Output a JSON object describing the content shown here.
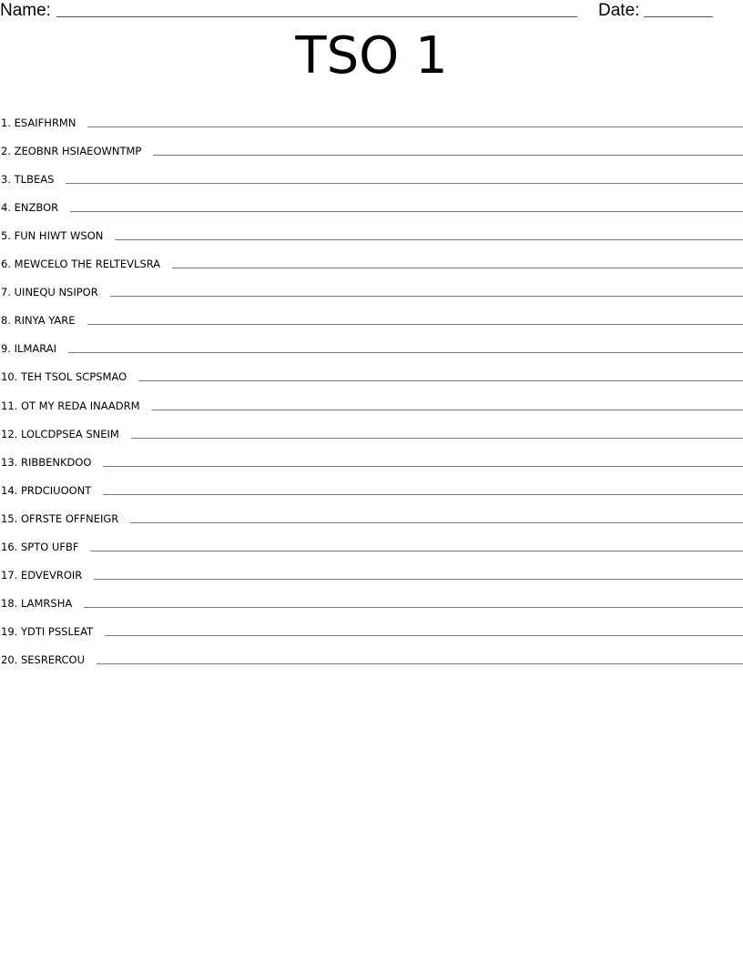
{
  "header": {
    "name_label": "Name:",
    "date_label": "Date:"
  },
  "title": "TSO 1",
  "items": [
    {
      "number": "1.",
      "scramble": "ESAIFHRMN"
    },
    {
      "number": "2.",
      "scramble": "ZEOBNR HSIAEOWNTMP"
    },
    {
      "number": "3.",
      "scramble": "TLBEAS"
    },
    {
      "number": "4.",
      "scramble": "ENZBOR"
    },
    {
      "number": "5.",
      "scramble": "FUN HIWT WSON"
    },
    {
      "number": "6.",
      "scramble": "MEWCELO THE RELTEVLSRA"
    },
    {
      "number": "7.",
      "scramble": "UINEQU NSIPOR"
    },
    {
      "number": "8.",
      "scramble": "RINYA YARE"
    },
    {
      "number": "9.",
      "scramble": "ILMARAI"
    },
    {
      "number": "10.",
      "scramble": "TEH TSOL SCPSMAO"
    },
    {
      "number": "11.",
      "scramble": "OT MY REDA INAADRM"
    },
    {
      "number": "12.",
      "scramble": "LOLCDPSEA SNEIM"
    },
    {
      "number": "13.",
      "scramble": "RIBBENKDOO"
    },
    {
      "number": "14.",
      "scramble": "PRDCIUOONT"
    },
    {
      "number": "15.",
      "scramble": "OFRSTE OFFNEIGR"
    },
    {
      "number": "16.",
      "scramble": "SPTO UFBF"
    },
    {
      "number": "17.",
      "scramble": "EDVEVROIR"
    },
    {
      "number": "18.",
      "scramble": "LAMRSHA"
    },
    {
      "number": "19.",
      "scramble": "YDTI PSSLEAT"
    },
    {
      "number": "20.",
      "scramble": "SESRERCOU"
    }
  ]
}
